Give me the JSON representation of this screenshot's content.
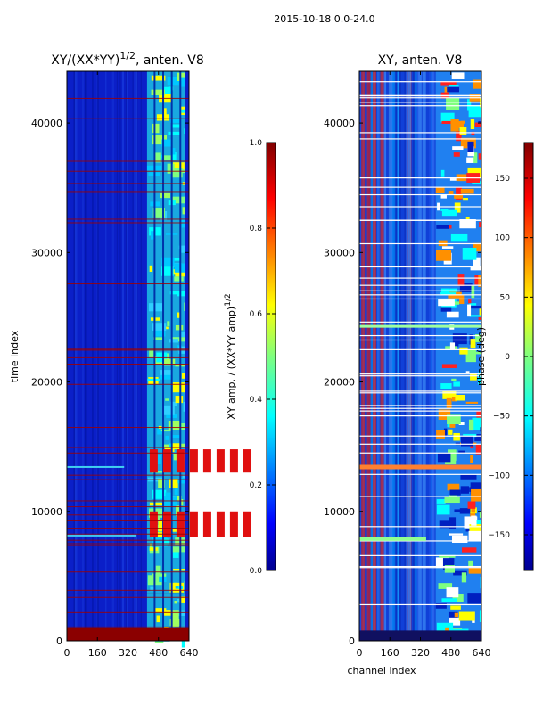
{
  "suptitle": "2015-10-18 0.0-24.0",
  "chart_data": [
    {
      "type": "heatmap",
      "title": "XY/(XX*YY)^{1/2}, anten. V8",
      "title_main": "XY/(XX*YY)",
      "title_sup": "1/2",
      "title_tail": ", anten. V8",
      "xlabel": "",
      "ylabel": "time index",
      "xlim": [
        0,
        640
      ],
      "ylim": [
        0,
        44000
      ],
      "xticks": [
        0,
        160,
        320,
        480,
        640
      ],
      "yticks": [
        0,
        10000,
        20000,
        30000,
        40000
      ],
      "colorbar": {
        "label": "XY amp. / (XX*YY amp)^{1/2}",
        "label_main": "XY amp. / (XX*YY amp)",
        "label_sup": "1/2",
        "range": [
          0.0,
          1.0
        ],
        "ticks": [
          "0.0",
          "0.2",
          "0.4",
          "0.6",
          "0.8",
          "1.0"
        ]
      }
    },
    {
      "type": "heatmap",
      "title": "XY, anten. V8",
      "xlabel": "channel index",
      "ylabel": "",
      "xlim": [
        0,
        640
      ],
      "ylim": [
        0,
        44000
      ],
      "xticks": [
        0,
        160,
        320,
        480,
        640
      ],
      "yticks": [
        0,
        10000,
        20000,
        30000,
        40000
      ],
      "colorbar": {
        "label": "phase (deg)",
        "range": [
          -180,
          180
        ],
        "ticks": [
          "−150",
          "−100",
          "−50",
          "0",
          "50",
          "100",
          "150"
        ]
      }
    }
  ],
  "colors": {
    "jet_darkblue": "#00008f",
    "jet_blue": "#0000ff",
    "jet_cyan": "#00ffff",
    "jet_yellow": "#ffff00",
    "jet_red": "#ff0000",
    "jet_darkred": "#800000"
  }
}
